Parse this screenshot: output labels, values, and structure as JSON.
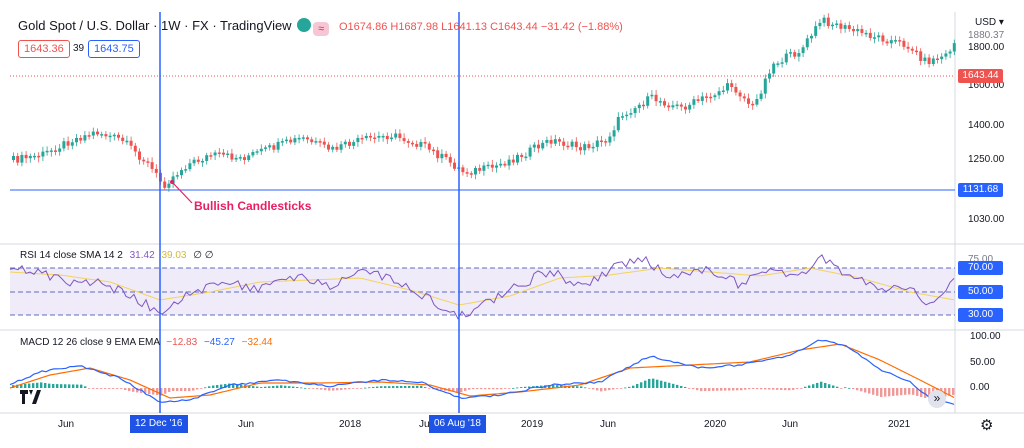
{
  "header": {
    "symbol": "Gold Spot / U.S. Dollar · 1W · FX · TradingView",
    "ohlc": "O1674.86 H1687.98 L1641.13 C1643.44 −31.42 (−1.88%)",
    "bid": "1643.36",
    "spread": "39",
    "ask": "1643.75",
    "currency": "USD ▾"
  },
  "price_axis": [
    "1800.00",
    "1600.00",
    "1400.00",
    "1250.00",
    "1030.00"
  ],
  "price_tags": {
    "last": "1643.44",
    "line": "1131.68",
    "partial": "1880.37"
  },
  "annotation": "Bullish Candlesticks",
  "rsi": {
    "label": "RSI 14 close SMA 14 2",
    "v1": "31.42",
    "v2": "39.03",
    "extra": "∅ ∅",
    "levels": [
      "70.00",
      "50.00",
      "30.00"
    ],
    "top_tick": "75.00"
  },
  "macd": {
    "label": "MACD 12 26 close 9 EMA EMA",
    "v1": "−12.83",
    "v2": "−45.27",
    "v3": "−32.44",
    "axis": [
      "100.00",
      "50.00",
      "0.00"
    ]
  },
  "time_axis": {
    "labels": [
      "Jun",
      "Jun",
      "2018",
      "Ju",
      "2019",
      "Jun",
      "2020",
      "Jun",
      "2021"
    ],
    "marker1": "12 Dec '16",
    "marker2": "06 Aug '18"
  },
  "colors": {
    "up": "#26a69a",
    "down": "#ef5350",
    "rsi": "#7e57c2",
    "sma": "#f3d35c",
    "macd": "#2962ff",
    "signal": "#ff6d00",
    "marker": "#2962ff"
  }
}
